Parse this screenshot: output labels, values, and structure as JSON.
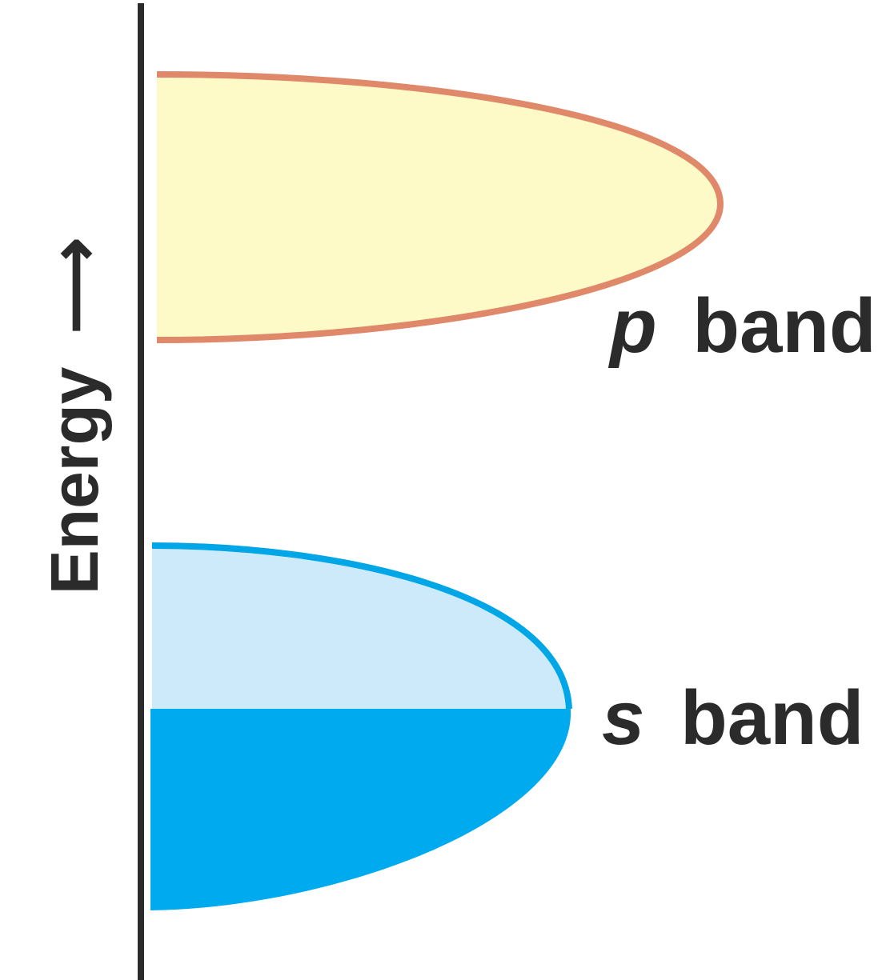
{
  "axis": {
    "label": "Energy",
    "arrow_glyph": "⟶"
  },
  "bands": {
    "p": {
      "letter": "p",
      "word": "band",
      "outline_color": "#e0896a",
      "fill_color": "#fdfac8",
      "filled_fraction": 0
    },
    "s": {
      "letter": "s",
      "word": "band",
      "outline_color": "#00a6e6",
      "empty_color": "#cdeafb",
      "filled_color": "#00aaee",
      "filled_fraction": 0.5
    }
  },
  "colors": {
    "axis_line": "#2b2b2b",
    "text": "#2b2b2b"
  }
}
